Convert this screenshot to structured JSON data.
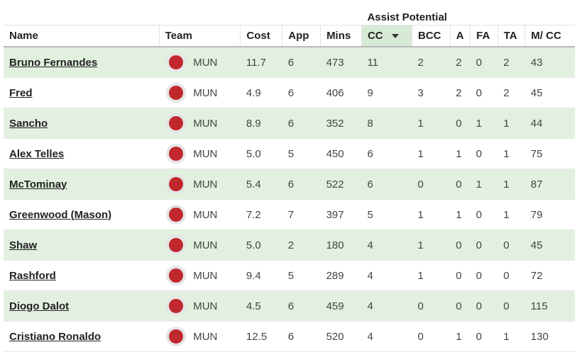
{
  "group_header": "Assist Potential",
  "columns": {
    "name": "Name",
    "team": "Team",
    "cost": "Cost",
    "app": "App",
    "mins": "Mins",
    "cc": "CC",
    "bcc": "BCC",
    "a": "A",
    "fa": "FA",
    "ta": "TA",
    "mcc": "M/ CC"
  },
  "sort": {
    "column": "CC",
    "direction": "descending"
  },
  "colors": {
    "team_badge": "#c0282d",
    "row_highlight": "#e2f0e0",
    "sorted_header": "#d7ead6"
  },
  "rows": [
    {
      "name": "Bruno Fernandes",
      "team": "MUN",
      "cost": "11.7",
      "app": "6",
      "mins": "473",
      "cc": "11",
      "bcc": "2",
      "a": "2",
      "fa": "0",
      "ta": "2",
      "mcc": "43"
    },
    {
      "name": "Fred",
      "team": "MUN",
      "cost": "4.9",
      "app": "6",
      "mins": "406",
      "cc": "9",
      "bcc": "3",
      "a": "2",
      "fa": "0",
      "ta": "2",
      "mcc": "45"
    },
    {
      "name": "Sancho",
      "team": "MUN",
      "cost": "8.9",
      "app": "6",
      "mins": "352",
      "cc": "8",
      "bcc": "1",
      "a": "0",
      "fa": "1",
      "ta": "1",
      "mcc": "44"
    },
    {
      "name": "Alex Telles",
      "team": "MUN",
      "cost": "5.0",
      "app": "5",
      "mins": "450",
      "cc": "6",
      "bcc": "1",
      "a": "1",
      "fa": "0",
      "ta": "1",
      "mcc": "75"
    },
    {
      "name": "McTominay",
      "team": "MUN",
      "cost": "5.4",
      "app": "6",
      "mins": "522",
      "cc": "6",
      "bcc": "0",
      "a": "0",
      "fa": "1",
      "ta": "1",
      "mcc": "87"
    },
    {
      "name": "Greenwood (Mason)",
      "team": "MUN",
      "cost": "7.2",
      "app": "7",
      "mins": "397",
      "cc": "5",
      "bcc": "1",
      "a": "1",
      "fa": "0",
      "ta": "1",
      "mcc": "79"
    },
    {
      "name": "Shaw",
      "team": "MUN",
      "cost": "5.0",
      "app": "2",
      "mins": "180",
      "cc": "4",
      "bcc": "1",
      "a": "0",
      "fa": "0",
      "ta": "0",
      "mcc": "45"
    },
    {
      "name": "Rashford",
      "team": "MUN",
      "cost": "9.4",
      "app": "5",
      "mins": "289",
      "cc": "4",
      "bcc": "1",
      "a": "0",
      "fa": "0",
      "ta": "0",
      "mcc": "72"
    },
    {
      "name": "Diogo Dalot",
      "team": "MUN",
      "cost": "4.5",
      "app": "6",
      "mins": "459",
      "cc": "4",
      "bcc": "0",
      "a": "0",
      "fa": "0",
      "ta": "0",
      "mcc": "115"
    },
    {
      "name": "Cristiano Ronaldo",
      "team": "MUN",
      "cost": "12.5",
      "app": "6",
      "mins": "520",
      "cc": "4",
      "bcc": "0",
      "a": "1",
      "fa": "0",
      "ta": "1",
      "mcc": "130"
    }
  ]
}
